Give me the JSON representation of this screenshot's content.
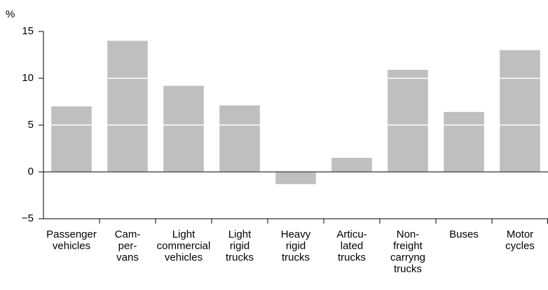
{
  "chart_data": {
    "type": "bar",
    "y_unit": "%",
    "categories": [
      [
        "Passenger",
        "vehicles"
      ],
      [
        "Cam-",
        "per-",
        "vans"
      ],
      [
        "Light",
        "commercial",
        "vehicles"
      ],
      [
        "Light",
        "rigid",
        "trucks"
      ],
      [
        "Heavy",
        "rigid",
        "trucks"
      ],
      [
        "Articu-",
        "lated",
        "trucks"
      ],
      [
        "Non-",
        "freight",
        "carryng",
        "trucks"
      ],
      [
        "Buses"
      ],
      [
        "Motor",
        "cycles"
      ]
    ],
    "values": [
      7.0,
      14.0,
      9.2,
      7.1,
      -1.3,
      1.5,
      10.9,
      6.4,
      13.0
    ],
    "color": "#bfbfbf",
    "ylim": [
      -5,
      15
    ],
    "yticks": [
      {
        "value": -5,
        "label": "−5"
      },
      0,
      5,
      10,
      15
    ],
    "grid": true,
    "grid_color": "#ffffff"
  }
}
